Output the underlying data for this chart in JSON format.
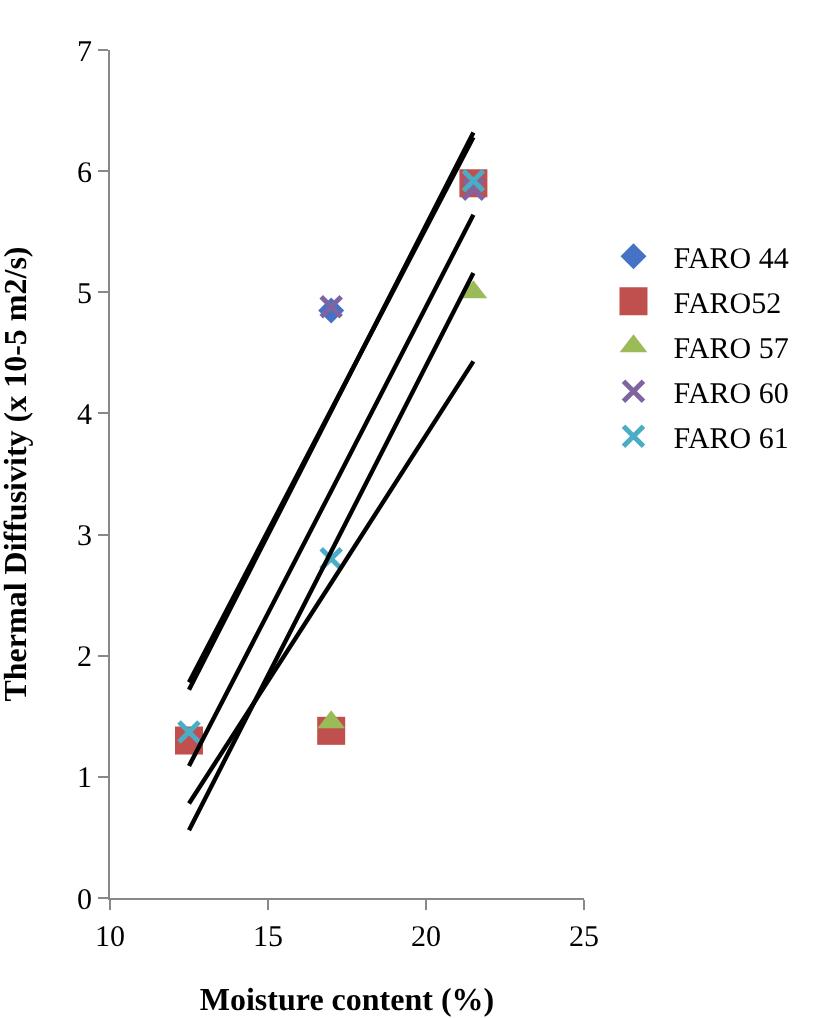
{
  "chart_data": {
    "type": "scatter",
    "xlabel": "Moisture content (%)",
    "ylabel": "Thermal Diffusivity (x 10-5 m2/s)",
    "x": [
      12.5,
      17,
      21.5
    ],
    "xlim": [
      10,
      25
    ],
    "xticks": [
      10,
      15,
      20,
      25
    ],
    "ylim": [
      0,
      7
    ],
    "yticks": [
      0,
      1,
      2,
      3,
      4,
      5,
      6,
      7
    ],
    "grid": false,
    "legend": "right",
    "series": [
      {
        "name": "FARO 44",
        "color": "#4472c4",
        "marker": "diamond",
        "values": [
          null,
          4.85,
          null
        ]
      },
      {
        "name": "FARO52",
        "color": "#c0504d",
        "marker": "square",
        "values": [
          1.3,
          1.38,
          5.9
        ]
      },
      {
        "name": "FARO 57",
        "color": "#9bbb59",
        "marker": "triangle",
        "values": [
          null,
          1.45,
          5.0
        ]
      },
      {
        "name": "FARO 60",
        "color": "#8064a2",
        "marker": "cross",
        "values": [
          null,
          4.88,
          5.85
        ]
      },
      {
        "name": "FARO 61",
        "color": "#4bacc6",
        "marker": "cross",
        "values": [
          1.37,
          2.8,
          5.92
        ]
      },
      {
        "type": "line",
        "color": "#000000",
        "values": [
          1.72,
          4.02,
          6.32
        ]
      },
      {
        "type": "line",
        "color": "#000000",
        "values": [
          1.78,
          4.03,
          6.28
        ]
      },
      {
        "type": "line",
        "color": "#000000",
        "values": [
          0.56,
          2.86,
          5.16
        ]
      },
      {
        "type": "line",
        "color": "#000000",
        "values": [
          0.78,
          2.6,
          4.43
        ]
      },
      {
        "type": "line",
        "color": "#000000",
        "values": [
          1.09,
          3.36,
          5.64
        ]
      }
    ]
  }
}
